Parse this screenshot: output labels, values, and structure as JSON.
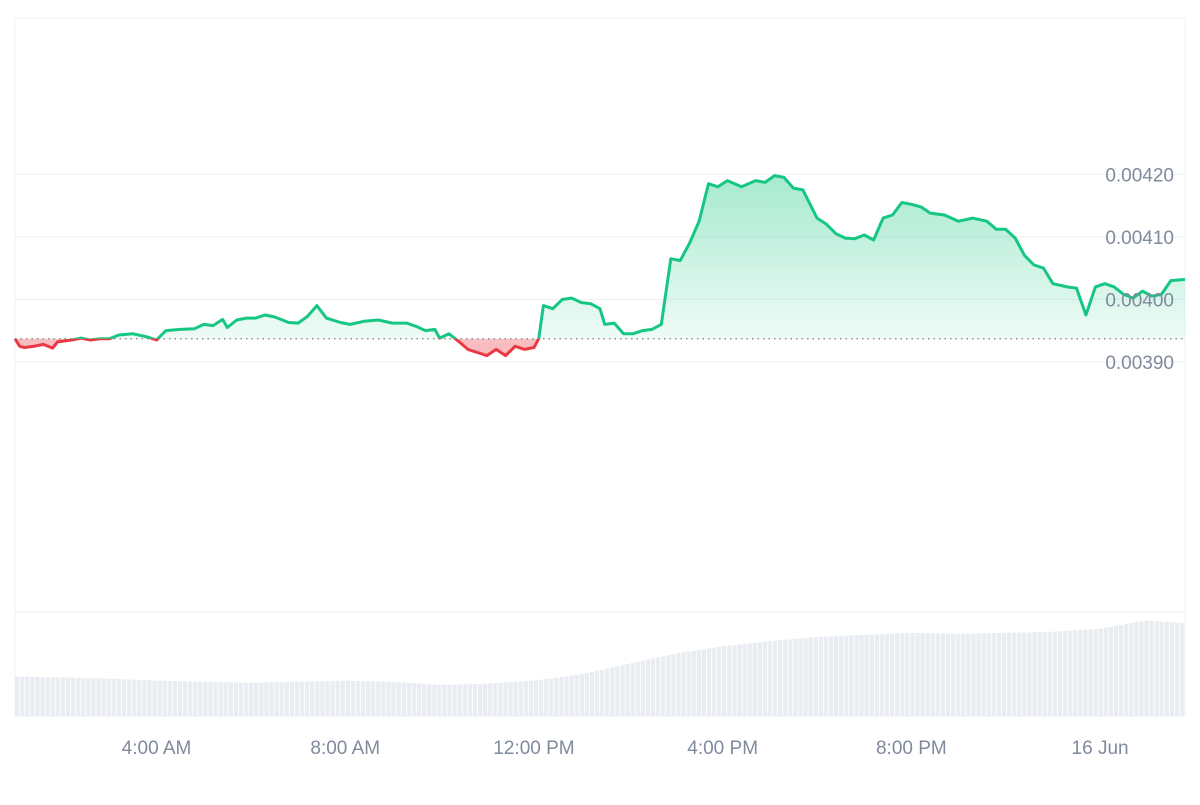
{
  "chart_data": {
    "type": "area",
    "y_ticks": [
      "0.00390",
      "0.00400",
      "0.00410",
      "0.00420"
    ],
    "x_ticks": [
      {
        "label": "4:00 AM",
        "hour": 4
      },
      {
        "label": "8:00 AM",
        "hour": 8
      },
      {
        "label": "12:00 PM",
        "hour": 12
      },
      {
        "label": "4:00 PM",
        "hour": 16
      },
      {
        "label": "8:00 PM",
        "hour": 20
      },
      {
        "label": "16 Jun",
        "hour": 24
      }
    ],
    "x_range_hours": [
      1,
      25.8
    ],
    "ylim": [
      0.0035,
      0.00445
    ],
    "baseline": 0.003937,
    "grid": true,
    "colors": {
      "up": "#16c784",
      "down": "#ea3943",
      "up_fill": "#16c784",
      "down_fill": "#ea3943",
      "volume": "#e9edf2",
      "grid": "#eff2f5",
      "baseline_dots": "#7e7e7e"
    },
    "price_series": [
      [
        1.0,
        0.003937
      ],
      [
        1.1,
        0.003925
      ],
      [
        1.2,
        0.003923
      ],
      [
        1.4,
        0.003925
      ],
      [
        1.6,
        0.003928
      ],
      [
        1.8,
        0.003922
      ],
      [
        1.9,
        0.003932
      ],
      [
        2.2,
        0.003935
      ],
      [
        2.4,
        0.003938
      ],
      [
        2.6,
        0.003935
      ],
      [
        2.8,
        0.003937
      ],
      [
        3.0,
        0.003937
      ],
      [
        3.2,
        0.003943
      ],
      [
        3.5,
        0.003945
      ],
      [
        3.8,
        0.00394
      ],
      [
        4.0,
        0.003935
      ],
      [
        4.2,
        0.00395
      ],
      [
        4.5,
        0.003952
      ],
      [
        4.8,
        0.003953
      ],
      [
        5.0,
        0.00396
      ],
      [
        5.2,
        0.003958
      ],
      [
        5.4,
        0.003968
      ],
      [
        5.5,
        0.003955
      ],
      [
        5.7,
        0.003967
      ],
      [
        5.9,
        0.00397
      ],
      [
        6.1,
        0.00397
      ],
      [
        6.3,
        0.003975
      ],
      [
        6.5,
        0.003972
      ],
      [
        6.8,
        0.003963
      ],
      [
        7.0,
        0.003962
      ],
      [
        7.2,
        0.003973
      ],
      [
        7.4,
        0.00399
      ],
      [
        7.6,
        0.00397
      ],
      [
        7.9,
        0.003963
      ],
      [
        8.1,
        0.00396
      ],
      [
        8.4,
        0.003965
      ],
      [
        8.7,
        0.003967
      ],
      [
        9.0,
        0.003962
      ],
      [
        9.3,
        0.003962
      ],
      [
        9.5,
        0.003957
      ],
      [
        9.7,
        0.00395
      ],
      [
        9.9,
        0.003952
      ],
      [
        10.0,
        0.003938
      ],
      [
        10.2,
        0.003945
      ],
      [
        10.4,
        0.003933
      ],
      [
        10.6,
        0.00392
      ],
      [
        10.8,
        0.003915
      ],
      [
        11.0,
        0.00391
      ],
      [
        11.2,
        0.00392
      ],
      [
        11.4,
        0.00391
      ],
      [
        11.6,
        0.003925
      ],
      [
        11.8,
        0.00392
      ],
      [
        12.0,
        0.003923
      ],
      [
        12.1,
        0.003937
      ],
      [
        12.2,
        0.00399
      ],
      [
        12.4,
        0.003985
      ],
      [
        12.6,
        0.004
      ],
      [
        12.8,
        0.004002
      ],
      [
        13.0,
        0.003995
      ],
      [
        13.2,
        0.003993
      ],
      [
        13.4,
        0.003985
      ],
      [
        13.5,
        0.00396
      ],
      [
        13.7,
        0.003962
      ],
      [
        13.9,
        0.003945
      ],
      [
        14.1,
        0.003945
      ],
      [
        14.3,
        0.00395
      ],
      [
        14.5,
        0.003952
      ],
      [
        14.7,
        0.00396
      ],
      [
        14.9,
        0.004065
      ],
      [
        15.1,
        0.004062
      ],
      [
        15.3,
        0.00409
      ],
      [
        15.5,
        0.004125
      ],
      [
        15.7,
        0.004185
      ],
      [
        15.9,
        0.00418
      ],
      [
        16.1,
        0.00419
      ],
      [
        16.4,
        0.00418
      ],
      [
        16.7,
        0.00419
      ],
      [
        16.9,
        0.004187
      ],
      [
        17.1,
        0.004198
      ],
      [
        17.3,
        0.004195
      ],
      [
        17.5,
        0.004178
      ],
      [
        17.7,
        0.004175
      ],
      [
        18.0,
        0.00413
      ],
      [
        18.2,
        0.00412
      ],
      [
        18.4,
        0.004105
      ],
      [
        18.6,
        0.004098
      ],
      [
        18.8,
        0.004097
      ],
      [
        19.0,
        0.004103
      ],
      [
        19.2,
        0.004095
      ],
      [
        19.4,
        0.00413
      ],
      [
        19.6,
        0.004135
      ],
      [
        19.8,
        0.004155
      ],
      [
        20.0,
        0.004152
      ],
      [
        20.2,
        0.004148
      ],
      [
        20.4,
        0.004138
      ],
      [
        20.7,
        0.004135
      ],
      [
        21.0,
        0.004125
      ],
      [
        21.3,
        0.00413
      ],
      [
        21.6,
        0.004125
      ],
      [
        21.8,
        0.004112
      ],
      [
        22.0,
        0.004112
      ],
      [
        22.2,
        0.004098
      ],
      [
        22.4,
        0.00407
      ],
      [
        22.6,
        0.004055
      ],
      [
        22.8,
        0.00405
      ],
      [
        23.0,
        0.004025
      ],
      [
        23.3,
        0.00402
      ],
      [
        23.5,
        0.004018
      ],
      [
        23.7,
        0.003975
      ],
      [
        23.9,
        0.00402
      ],
      [
        24.1,
        0.004025
      ],
      [
        24.3,
        0.00402
      ],
      [
        24.5,
        0.004008
      ],
      [
        24.7,
        0.004002
      ],
      [
        24.9,
        0.004013
      ],
      [
        25.1,
        0.004005
      ],
      [
        25.3,
        0.004008
      ],
      [
        25.5,
        0.00403
      ],
      [
        25.8,
        0.004032
      ]
    ],
    "volume_series": [
      [
        1.0,
        0.38
      ],
      [
        2.0,
        0.37
      ],
      [
        3.0,
        0.36
      ],
      [
        4.0,
        0.34
      ],
      [
        5.0,
        0.33
      ],
      [
        6.0,
        0.32
      ],
      [
        7.0,
        0.33
      ],
      [
        8.0,
        0.34
      ],
      [
        9.0,
        0.33
      ],
      [
        10.0,
        0.3
      ],
      [
        11.0,
        0.31
      ],
      [
        12.0,
        0.34
      ],
      [
        13.0,
        0.4
      ],
      [
        14.0,
        0.5
      ],
      [
        15.0,
        0.6
      ],
      [
        16.0,
        0.67
      ],
      [
        17.0,
        0.72
      ],
      [
        18.0,
        0.76
      ],
      [
        19.0,
        0.78
      ],
      [
        20.0,
        0.8
      ],
      [
        21.0,
        0.79
      ],
      [
        22.0,
        0.8
      ],
      [
        23.0,
        0.81
      ],
      [
        24.0,
        0.84
      ],
      [
        25.0,
        0.92
      ],
      [
        25.8,
        0.89
      ]
    ]
  }
}
